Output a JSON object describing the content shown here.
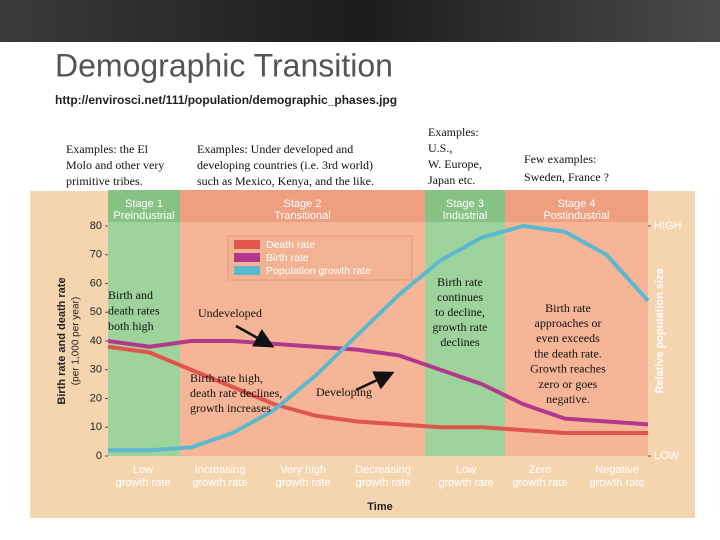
{
  "slide": {
    "title": "Demographic Transition",
    "source": "http://envirosci.net/111/population/demographic_phases.jpg"
  },
  "chart_data": {
    "type": "line",
    "ylabel": [
      "Birth rate and death rate",
      "(per 1,000 per year)"
    ],
    "y2label": "Relative population size",
    "xlabel": "Time",
    "categories": [
      null,
      null,
      null,
      null,
      null,
      null,
      null,
      null,
      null,
      null,
      null,
      null,
      null,
      null
    ],
    "series": [
      {
        "name": "Death rate",
        "color": "#e0554c",
        "values": [
          38,
          36,
          30,
          24,
          18,
          14,
          12,
          11,
          10,
          10,
          9,
          8,
          8,
          8
        ]
      },
      {
        "name": "Birth rate",
        "color": "#b2388e",
        "values": [
          40,
          38,
          40,
          40,
          39,
          38,
          37,
          35,
          30,
          25,
          18,
          13,
          12,
          11
        ]
      },
      {
        "name": "Population growth rate",
        "color": "#5bb9cf",
        "axis": "y2",
        "values": [
          2,
          2,
          3,
          8,
          16,
          28,
          42,
          56,
          68,
          76,
          80,
          78,
          70,
          54
        ]
      }
    ],
    "ylim": [
      0,
      80
    ],
    "yticks": [
      0,
      10,
      20,
      30,
      40,
      50,
      60,
      70,
      80
    ],
    "y2lim": [
      0,
      80
    ],
    "y2ticks": [
      {
        "value": 80,
        "label": "HIGH"
      },
      {
        "value": 0,
        "label": "LOW"
      }
    ],
    "stages": [
      {
        "name": "Stage 1",
        "label": "Preindustrial"
      },
      {
        "name": "Stage 2",
        "label": "Transitional"
      },
      {
        "name": "Stage 3",
        "label": "Industrial"
      },
      {
        "name": "Stage 4",
        "label": "Postindustrial"
      }
    ],
    "growth_labels": [
      [
        "Low",
        "growth rate"
      ],
      [
        "Increasing",
        "growth rate"
      ],
      [
        "Very high",
        "growth rate"
      ],
      [
        "Decreasing",
        "growth rate"
      ],
      [
        "Low",
        "growth rate"
      ],
      [
        "Zero",
        "growth rate"
      ],
      [
        "Negative",
        "growth rate"
      ]
    ],
    "annotations": [
      [
        "Examples: the El",
        "Molo and other very",
        "primitive tribes."
      ],
      [
        "Examples: Under developed and",
        "developing countries (i.e. 3rd world)",
        "such as Mexico, Kenya, and the like."
      ],
      [
        "Examples:",
        "U.S.,",
        "W. Europe,",
        "Japan etc."
      ],
      [
        "Few examples:",
        "Sweden, France ?"
      ],
      [
        "Birth and",
        "death rates",
        "both high"
      ],
      [
        "Undeveloped"
      ],
      [
        "Birth rate high,",
        "death rate declines,",
        "growth increases"
      ],
      [
        "Developing"
      ],
      [
        "Birth rate",
        "continues",
        "to decline,",
        "growth rate",
        "declines"
      ],
      [
        "Birth rate",
        "approaches or",
        "even exceeds",
        "the death rate.",
        "Growth reaches",
        "zero or goes",
        "negative."
      ]
    ]
  }
}
